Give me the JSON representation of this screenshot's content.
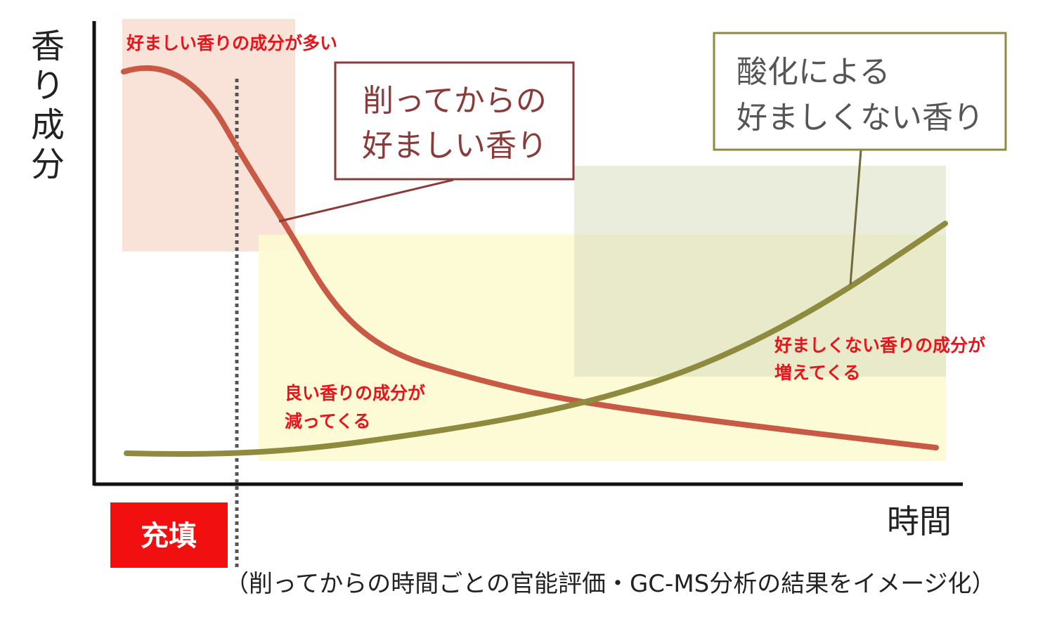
{
  "chart_data": {
    "type": "line",
    "ylabel": "香り成分",
    "xlabel": "時間",
    "caption": "（削ってからの時間ごとの官能評価・GC-MS分析の結果をイメージ化）",
    "marker_label": "充填",
    "series": [
      {
        "name": "削ってからの好ましい香り",
        "color": "#c85a45",
        "label_color": "#8b3a3a"
      },
      {
        "name": "酸化による好ましくない香り",
        "color": "#8f8b3e",
        "label_color": "#6f6a3a"
      }
    ],
    "annotations": [
      "好ましい香りの成分が多い",
      "良い香りの成分が",
      "減ってくる",
      "好ましくない香りの成分が",
      "増えてくる"
    ],
    "grid": false
  }
}
